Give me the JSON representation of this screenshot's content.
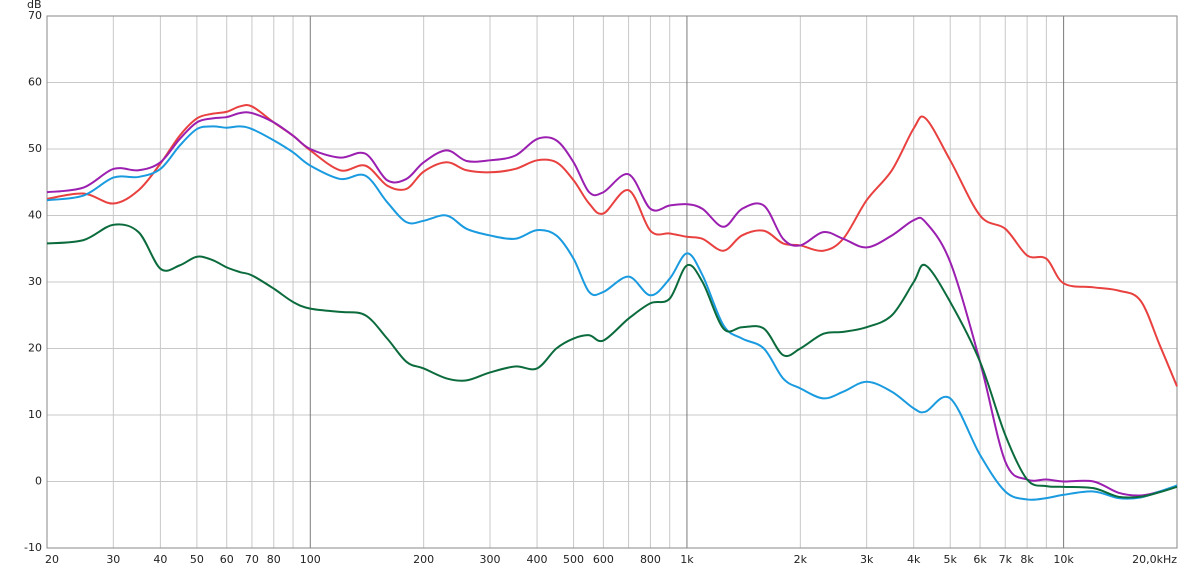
{
  "chart_data": {
    "type": "line",
    "ylabel": "dB",
    "xscale": "log",
    "grid": true,
    "xlim": [
      20,
      20000
    ],
    "ylim": [
      -10,
      70
    ],
    "yticks": [
      -10,
      0,
      10,
      20,
      30,
      40,
      50,
      60,
      70
    ],
    "xticks": [
      20,
      30,
      40,
      50,
      60,
      70,
      80,
      100,
      200,
      300,
      400,
      500,
      600,
      800,
      {
        "value": 1000,
        "label": "1k"
      },
      {
        "value": 2000,
        "label": "2k"
      },
      {
        "value": 3000,
        "label": "3k"
      },
      {
        "value": 4000,
        "label": "4k"
      },
      {
        "value": 5000,
        "label": "5k"
      },
      {
        "value": 6000,
        "label": "6k"
      },
      {
        "value": 7000,
        "label": "7k"
      },
      {
        "value": 8000,
        "label": "8k"
      },
      {
        "value": 10000,
        "label": "10k"
      },
      {
        "value": 20000,
        "label": "20,0kHz"
      }
    ],
    "xminor": [
      90,
      700,
      900,
      9000
    ],
    "x": [
      20,
      25,
      30,
      35,
      40,
      45,
      50,
      55,
      60,
      65,
      70,
      80,
      90,
      100,
      120,
      140,
      160,
      180,
      200,
      230,
      260,
      300,
      350,
      400,
      450,
      500,
      550,
      600,
      700,
      800,
      900,
      1000,
      1100,
      1250,
      1400,
      1600,
      1800,
      2000,
      2300,
      2600,
      3000,
      3500,
      4000,
      4300,
      5000,
      6000,
      7000,
      8000,
      9000,
      10000,
      12000,
      14000,
      16000,
      18000,
      20000
    ],
    "series": [
      {
        "color": "#e8413f",
        "values": [
          42.5,
          43.3,
          41.8,
          43.8,
          47.8,
          52,
          54.6,
          55.3,
          55.6,
          56.4,
          56.4,
          54,
          52,
          49.8,
          46.8,
          47.5,
          44.5,
          44,
          46.6,
          48,
          46.8,
          46.5,
          47,
          48.3,
          48,
          45.3,
          41.8,
          40.3,
          43.8,
          37.7,
          37.3,
          36.8,
          36.5,
          34.7,
          37,
          37.7,
          35.8,
          35.5,
          34.7,
          36.5,
          42.3,
          46.8,
          53.1,
          54.6,
          48.3,
          40,
          38,
          34,
          33.5,
          29.8,
          29.2,
          28.7,
          27.2,
          20.5,
          14.3
        ]
      },
      {
        "color": "#9b1fb0",
        "values": [
          43.5,
          44.2,
          47,
          46.8,
          48,
          51.5,
          54,
          54.6,
          54.8,
          55.4,
          55.4,
          54,
          52,
          50,
          48.7,
          49.3,
          45.3,
          45.5,
          48,
          49.8,
          48.2,
          48.3,
          49,
          51.5,
          51.3,
          48,
          43.5,
          43.5,
          46.2,
          41,
          41.5,
          41.7,
          41,
          38.3,
          41,
          41.5,
          36.5,
          35.5,
          37.5,
          36.5,
          35.2,
          37,
          39.3,
          39,
          33,
          18,
          3,
          0.3,
          0.3,
          0,
          0,
          -1.7,
          -2.1,
          -1.5,
          -0.7
        ]
      },
      {
        "color": "#1a9be0",
        "values": [
          42.3,
          43,
          45.7,
          45.8,
          47,
          50.5,
          53,
          53.4,
          53.2,
          53.4,
          53,
          51.3,
          49.5,
          47.5,
          45.5,
          46,
          42,
          39,
          39.2,
          40,
          38,
          37,
          36.5,
          37.8,
          37,
          33.5,
          28.5,
          28.5,
          30.8,
          28,
          30.5,
          34.3,
          31,
          23.5,
          21.5,
          20,
          15.5,
          14,
          12.5,
          13.5,
          15,
          13.5,
          11,
          10.5,
          12.5,
          4,
          -1.5,
          -2.7,
          -2.5,
          -2,
          -1.5,
          -2.5,
          -2.4,
          -1.5,
          -0.6
        ]
      },
      {
        "color": "#0b6b3c",
        "values": [
          35.8,
          36.3,
          38.6,
          37.5,
          32,
          32.5,
          33.8,
          33.3,
          32.2,
          31.5,
          31,
          29,
          27,
          26,
          25.5,
          25,
          21.5,
          18,
          17,
          15.5,
          15.2,
          16.4,
          17.3,
          17,
          20,
          21.5,
          22,
          21.2,
          24.5,
          26.8,
          27.5,
          32.5,
          30,
          23,
          23.2,
          23,
          19,
          20,
          22.2,
          22.5,
          23.2,
          25,
          30,
          32.5,
          27,
          18,
          7,
          0.3,
          -0.7,
          -0.8,
          -1,
          -2.3,
          -2.3,
          -1.6,
          -0.8
        ]
      }
    ]
  }
}
